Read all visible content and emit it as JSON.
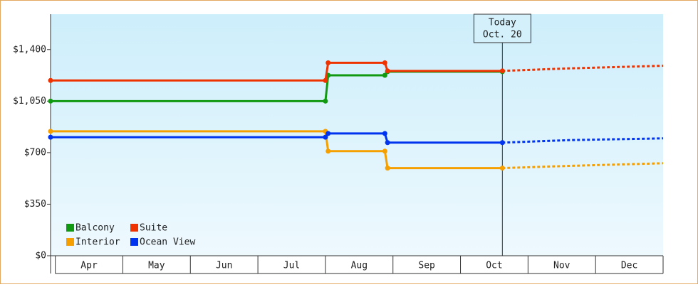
{
  "chart_data": {
    "type": "step-line",
    "categories": [
      "Apr",
      "May",
      "Jun",
      "Jul",
      "Aug",
      "Sep",
      "Oct",
      "Nov",
      "Dec"
    ],
    "xlim": [
      -0.07,
      9
    ],
    "ylim": [
      0,
      1640
    ],
    "yticks": [
      {
        "value": 0,
        "label": "$0"
      },
      {
        "value": 350,
        "label": "$350"
      },
      {
        "value": 700,
        "label": "$700"
      },
      {
        "value": 1050,
        "label": "$1,050"
      },
      {
        "value": 1400,
        "label": "$1,400"
      }
    ],
    "annotation": {
      "lines": [
        "Today",
        "Oct. 20"
      ],
      "x": 6.62
    },
    "series": [
      {
        "name": "Balcony",
        "color": "#119911",
        "x": [
          -0.07,
          4.0,
          4.04,
          4.88,
          4.92,
          6.62
        ],
        "values": [
          1050,
          1050,
          1225,
          1225,
          1250,
          1250
        ]
      },
      {
        "name": "Suite",
        "color": "#ee3300",
        "x": [
          -0.07,
          4.0,
          4.04,
          4.88,
          4.92,
          6.62
        ],
        "values": [
          1190,
          1190,
          1310,
          1310,
          1255,
          1255
        ],
        "projection": {
          "x": [
            6.62,
            7.6,
            9
          ],
          "values": [
            1255,
            1272,
            1290
          ]
        }
      },
      {
        "name": "Interior",
        "color": "#f5a000",
        "x": [
          -0.07,
          4.0,
          4.04,
          4.88,
          4.92,
          6.62
        ],
        "values": [
          845,
          845,
          710,
          710,
          595,
          595
        ],
        "projection": {
          "x": [
            6.62,
            7.6,
            9
          ],
          "values": [
            595,
            610,
            628
          ]
        }
      },
      {
        "name": "Ocean View",
        "color": "#0033ee",
        "x": [
          -0.07,
          4.0,
          4.04,
          4.88,
          4.92,
          6.62
        ],
        "values": [
          805,
          805,
          830,
          830,
          768,
          768
        ],
        "projection": {
          "x": [
            6.62,
            7.6,
            9
          ],
          "values": [
            768,
            785,
            797
          ]
        }
      }
    ]
  }
}
